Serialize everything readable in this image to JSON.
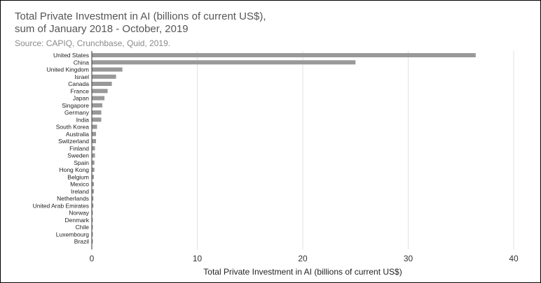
{
  "chart_data": {
    "type": "bar",
    "orientation": "horizontal",
    "title": "Total Private Investment in AI (billions of current US$),\nsum of January 2018 - October, 2019",
    "subtitle": "Source: CAPIQ, Crunchbase, Quid, 2019.",
    "xlabel": "Total Private Investment in AI (billions of current US$)",
    "ylabel": "",
    "xlim": [
      0,
      40
    ],
    "xticks": [
      0,
      10,
      20,
      30,
      40
    ],
    "grid": true,
    "bar_color": "#999999",
    "categories": [
      "United States",
      "China",
      "United Kingdom",
      "Israel",
      "Canada",
      "France",
      "Japan",
      "Singapore",
      "Germany",
      "India",
      "South Korea",
      "Australia",
      "Switzerland",
      "Finland",
      "Sweden",
      "Spain",
      "Hong Kong",
      "Belgium",
      "Mexico",
      "Ireland",
      "Netherlands",
      "United Arab Emirates",
      "Norway",
      "Denmark",
      "Chile",
      "Luxembourg",
      "Brazil"
    ],
    "values": [
      36.4,
      25.0,
      2.9,
      2.3,
      1.9,
      1.5,
      1.2,
      1.0,
      0.9,
      0.9,
      0.5,
      0.4,
      0.4,
      0.3,
      0.3,
      0.25,
      0.25,
      0.2,
      0.2,
      0.2,
      0.15,
      0.15,
      0.1,
      0.1,
      0.1,
      0.1,
      0.1
    ]
  }
}
